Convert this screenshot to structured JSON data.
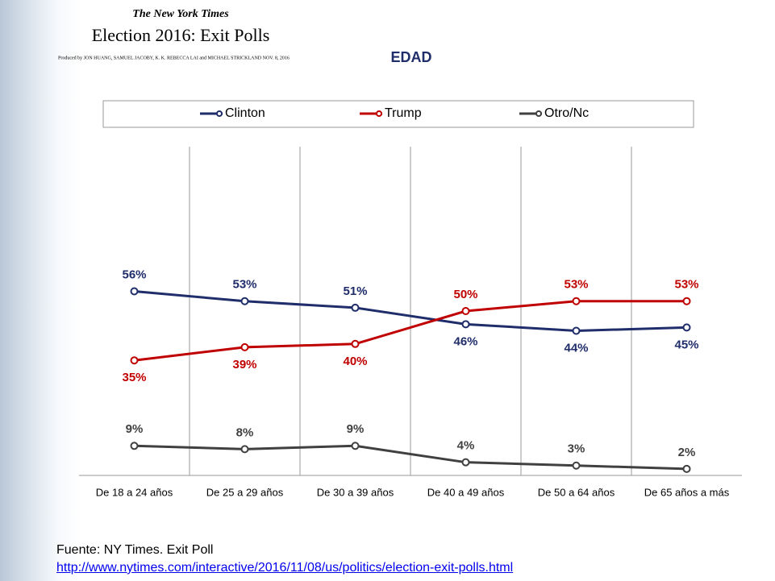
{
  "header": {
    "masthead": "The New York Times",
    "headline": "Election 2016: Exit Polls",
    "byline": "Produced by JON HUANG, SAMUEL JACOBY, K. K. REBECCA LAI and MICHAEL STRICKLAND   NOV. 8, 2016"
  },
  "chart_data": {
    "type": "line",
    "title": "EDAD",
    "categories": [
      "De 18 a 24 años",
      "De 25 a 29 años",
      "De 30 a 39 años",
      "De 40 a 49 años",
      "De 50 a 64 años",
      "De 65 años a más"
    ],
    "series": [
      {
        "name": "Clinton",
        "color": "#1f2d6b",
        "values": [
          56,
          53,
          51,
          46,
          44,
          45
        ],
        "value_labels": [
          "56%",
          "53%",
          "51%",
          "46%",
          "44%",
          "45%"
        ]
      },
      {
        "name": "Trump",
        "color": "#c00000",
        "values": [
          35,
          39,
          40,
          50,
          53,
          53
        ],
        "value_labels": [
          "35%",
          "39%",
          "40%",
          "50%",
          "53%",
          "53%"
        ]
      },
      {
        "name": "Otro/Nc",
        "color": "#404040",
        "values": [
          9,
          8,
          9,
          4,
          3,
          2
        ],
        "value_labels": [
          "9%",
          "8%",
          "9%",
          "4%",
          "3%",
          "2%"
        ]
      }
    ],
    "ylim": [
      0,
      100
    ],
    "legend": "top"
  },
  "source": {
    "text": "Fuente: NY Times. Exit Poll",
    "url": "http://www.nytimes.com/interactive/2016/11/08/us/politics/election-exit-polls.html"
  }
}
